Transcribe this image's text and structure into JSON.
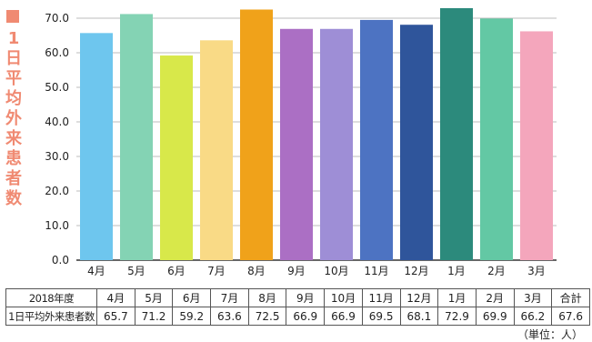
{
  "chart_data": {
    "type": "bar",
    "ylabel": "1日平均外来患者数",
    "categories": [
      "4月",
      "5月",
      "6月",
      "7月",
      "8月",
      "9月",
      "10月",
      "11月",
      "12月",
      "1月",
      "2月",
      "3月"
    ],
    "values": [
      65.7,
      71.2,
      59.2,
      63.6,
      72.5,
      66.9,
      66.9,
      69.5,
      68.1,
      72.9,
      69.9,
      66.2
    ],
    "ylim": [
      0,
      72.9
    ],
    "yticks": [
      "0.0",
      "10.0",
      "20.0",
      "30.0",
      "40.0",
      "50.0",
      "60.0",
      "70.0"
    ],
    "grid": true,
    "colors": [
      "#6ec6ee",
      "#84d3b4",
      "#d8e84a",
      "#f9da86",
      "#f0a21a",
      "#ab6fc4",
      "#9e8ed6",
      "#4d73c2",
      "#2f559b",
      "#2c8a7c",
      "#63c8a4",
      "#f4a6bc"
    ]
  },
  "table": {
    "header_label": "2018年度",
    "row_label": "1日平均外来患者数",
    "months": [
      "4月",
      "5月",
      "6月",
      "7月",
      "8月",
      "9月",
      "10月",
      "11月",
      "12月",
      "1月",
      "2月",
      "3月"
    ],
    "total_label": "合計",
    "values": [
      "65.7",
      "71.2",
      "59.2",
      "63.6",
      "72.5",
      "66.9",
      "66.9",
      "69.5",
      "68.1",
      "72.9",
      "69.9",
      "66.2"
    ],
    "total_value": "67.6"
  },
  "unit_note": "（単位：人）"
}
